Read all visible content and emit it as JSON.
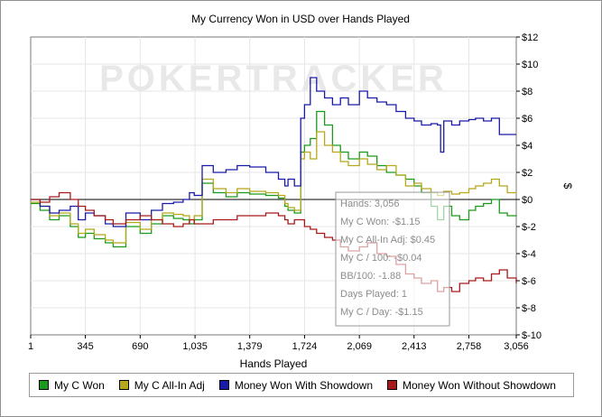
{
  "chart_data": {
    "type": "line",
    "title": "My Currency Won in USD over Hands Played",
    "xlabel": "Hands Played",
    "ylabel": "$",
    "xlim": [
      1,
      3056
    ],
    "ylim": [
      -10,
      12
    ],
    "x_ticks": [
      "1",
      "345",
      "690",
      "1,035",
      "1,379",
      "1,724",
      "2,069",
      "2,413",
      "2,758",
      "3,056"
    ],
    "x_tick_values": [
      1,
      345,
      690,
      1035,
      1379,
      1724,
      2069,
      2413,
      2758,
      3056
    ],
    "y_ticks": [
      "$12",
      "$10",
      "$8",
      "$6",
      "$4",
      "$2",
      "$0",
      "$-2",
      "$-4",
      "$-6",
      "$-8",
      "$-10"
    ],
    "y_tick_values": [
      12,
      10,
      8,
      6,
      4,
      2,
      0,
      -2,
      -4,
      -6,
      -8,
      -10
    ],
    "grid": true,
    "legend_position": "bottom",
    "watermark": "POKERTRACKER",
    "series": [
      {
        "name": "My C Won",
        "color": "#1a9a1a",
        "x": [
          1,
          60,
          120,
          180,
          250,
          300,
          345,
          400,
          470,
          520,
          600,
          690,
          760,
          830,
          900,
          960,
          1000,
          1030,
          1080,
          1150,
          1230,
          1300,
          1379,
          1480,
          1560,
          1600,
          1620,
          1660,
          1700,
          1724,
          1760,
          1800,
          1850,
          1900,
          1950,
          2000,
          2069,
          2120,
          2180,
          2240,
          2300,
          2360,
          2413,
          2460,
          2520,
          2560,
          2600,
          2650,
          2700,
          2758,
          2800,
          2850,
          2900,
          2950,
          3000,
          3056
        ],
        "y": [
          -0.3,
          -0.8,
          -1.5,
          -1.2,
          -2.0,
          -2.8,
          -2.5,
          -2.9,
          -3.2,
          -3.5,
          -2.0,
          -2.5,
          -1.8,
          -1.2,
          -1.4,
          -1.5,
          -1.8,
          -1.5,
          1.2,
          0.5,
          0.2,
          0.5,
          0.4,
          0.3,
          0.1,
          -0.5,
          -0.8,
          -1.0,
          3.5,
          4.0,
          4.5,
          6.5,
          5.5,
          4.0,
          3.5,
          3.0,
          3.5,
          3.2,
          2.5,
          2.0,
          1.8,
          1.5,
          1.0,
          0.5,
          -0.5,
          -1.5,
          -0.5,
          -1.2,
          -1.5,
          -0.8,
          -0.5,
          -0.3,
          0.0,
          -1.0,
          -1.2,
          -1.15
        ]
      },
      {
        "name": "My C All-In Adj",
        "color": "#b5a81a",
        "x": [
          1,
          60,
          120,
          180,
          250,
          300,
          345,
          400,
          470,
          520,
          600,
          690,
          760,
          830,
          900,
          960,
          1000,
          1030,
          1080,
          1150,
          1230,
          1300,
          1379,
          1480,
          1560,
          1600,
          1620,
          1660,
          1700,
          1724,
          1760,
          1800,
          1850,
          1900,
          1950,
          2000,
          2069,
          2120,
          2180,
          2240,
          2300,
          2360,
          2413,
          2460,
          2520,
          2560,
          2600,
          2650,
          2700,
          2758,
          2800,
          2850,
          2900,
          2950,
          3000,
          3056
        ],
        "y": [
          -0.2,
          -0.5,
          -1.2,
          -1.0,
          -1.8,
          -2.5,
          -2.2,
          -2.6,
          -3.0,
          -3.2,
          -1.7,
          -2.2,
          -1.5,
          -1.0,
          -1.1,
          -1.2,
          -1.5,
          -1.2,
          1.5,
          0.8,
          0.5,
          0.8,
          0.6,
          0.5,
          0.3,
          -0.3,
          -0.6,
          -0.8,
          3.0,
          3.5,
          3.0,
          5.0,
          4.0,
          3.5,
          2.8,
          2.5,
          3.0,
          2.6,
          2.2,
          2.5,
          1.8,
          1.0,
          1.2,
          0.8,
          0.5,
          0.3,
          0.6,
          0.4,
          0.5,
          0.8,
          1.0,
          1.2,
          1.5,
          1.0,
          0.5,
          0.45
        ]
      },
      {
        "name": "Money Won With Showdown",
        "color": "#1a1aa8",
        "x": [
          1,
          60,
          120,
          180,
          250,
          300,
          345,
          400,
          470,
          520,
          600,
          690,
          760,
          830,
          900,
          960,
          1000,
          1030,
          1080,
          1150,
          1230,
          1300,
          1379,
          1480,
          1560,
          1600,
          1620,
          1660,
          1700,
          1724,
          1760,
          1800,
          1850,
          1900,
          1950,
          2000,
          2069,
          2120,
          2180,
          2240,
          2300,
          2360,
          2413,
          2460,
          2520,
          2560,
          2580,
          2600,
          2650,
          2700,
          2758,
          2800,
          2850,
          2900,
          2950,
          3000,
          3056
        ],
        "y": [
          0.0,
          -0.5,
          -1.0,
          -0.8,
          -0.5,
          -1.5,
          -1.0,
          -1.2,
          -1.8,
          -2.0,
          -1.0,
          -1.5,
          -0.8,
          -0.3,
          -0.2,
          0.0,
          0.5,
          0.3,
          2.5,
          2.0,
          2.2,
          2.5,
          2.4,
          2.0,
          1.5,
          1.0,
          1.5,
          1.0,
          6.0,
          7.0,
          9.0,
          8.0,
          7.5,
          7.0,
          7.5,
          7.0,
          8.0,
          7.5,
          7.2,
          7.0,
          6.5,
          6.0,
          5.8,
          5.5,
          5.6,
          5.5,
          3.5,
          5.8,
          5.5,
          5.8,
          5.9,
          6.0,
          5.8,
          6.0,
          4.8,
          4.8,
          4.8
        ]
      },
      {
        "name": "Money Won Without Showdown",
        "color": "#a81a1a",
        "x": [
          1,
          60,
          120,
          180,
          250,
          300,
          345,
          400,
          470,
          520,
          600,
          690,
          760,
          830,
          900,
          960,
          1000,
          1030,
          1080,
          1150,
          1230,
          1300,
          1379,
          1480,
          1560,
          1600,
          1620,
          1660,
          1700,
          1724,
          1760,
          1800,
          1850,
          1900,
          1950,
          2000,
          2069,
          2120,
          2180,
          2240,
          2300,
          2360,
          2413,
          2460,
          2520,
          2560,
          2600,
          2650,
          2700,
          2758,
          2800,
          2850,
          2900,
          2950,
          3000,
          3056
        ],
        "y": [
          0.0,
          -0.2,
          0.2,
          0.5,
          0.0,
          -0.5,
          -0.8,
          -1.2,
          -1.5,
          -1.8,
          -1.5,
          -1.2,
          -1.5,
          -1.8,
          -2.0,
          -1.8,
          -1.5,
          -1.8,
          -1.8,
          -1.5,
          -1.5,
          -1.2,
          -1.2,
          -1.0,
          -1.2,
          -1.5,
          -1.8,
          -1.5,
          -1.5,
          -2.0,
          -2.2,
          -2.5,
          -2.8,
          -3.0,
          -3.5,
          -3.8,
          -3.5,
          -3.2,
          -4.0,
          -4.2,
          -4.8,
          -5.5,
          -5.8,
          -6.2,
          -6.0,
          -6.8,
          -6.5,
          -6.8,
          -6.2,
          -6.0,
          -5.8,
          -6.0,
          -5.5,
          -5.2,
          -5.8,
          -6.2
        ]
      }
    ],
    "tooltip": {
      "lines": [
        "Hands: 3,056",
        "My C Won: -$1.15",
        "My C All-In Adj: $0.45",
        "My C / 100: -$0.04",
        "BB/100: -1.88",
        "Days Played: 1",
        "My C / Day: -$1.15"
      ]
    }
  }
}
